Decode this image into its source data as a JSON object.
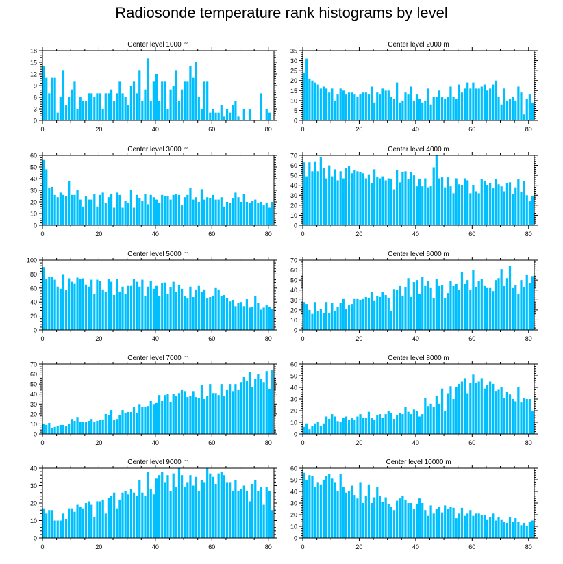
{
  "title": "Radiosonde temperature rank histograms by level",
  "bar_color": "#00BFFF",
  "chart_data": [
    {
      "type": "bar",
      "title": "Center level 1000 m",
      "ylim": [
        0,
        18
      ],
      "yticks": [
        0,
        3,
        6,
        9,
        12,
        15,
        18
      ],
      "xlim": [
        0,
        82
      ],
      "xticks": [
        0,
        20,
        40,
        60,
        80
      ],
      "values": [
        14,
        11,
        7,
        11,
        11,
        2,
        6,
        13,
        4,
        6,
        8,
        10,
        3,
        6,
        5,
        5,
        7,
        7,
        6,
        7,
        7,
        3,
        7,
        7,
        8,
        5,
        7,
        10,
        7,
        6,
        4,
        9,
        10,
        7,
        13,
        5,
        8,
        16,
        5,
        10,
        12,
        5,
        10,
        10,
        3,
        8,
        9,
        13,
        5,
        8,
        10,
        10,
        14,
        11,
        15,
        6,
        3,
        10,
        10,
        2,
        3,
        2,
        2,
        4,
        1,
        3,
        2,
        4,
        5,
        1,
        0,
        3,
        0,
        3,
        0,
        0,
        0,
        7,
        0,
        3,
        2,
        0,
        2,
        2,
        0,
        3,
        2
      ]
    },
    {
      "type": "bar",
      "title": "Center level 2000 m",
      "ylim": [
        0,
        35
      ],
      "yticks": [
        0,
        5,
        10,
        15,
        20,
        25,
        30,
        35
      ],
      "xlim": [
        0,
        82
      ],
      "xticks": [
        0,
        20,
        40,
        60,
        80
      ],
      "values": [
        24,
        31,
        21,
        20,
        19,
        18,
        16,
        17,
        16,
        14,
        16,
        10,
        13,
        16,
        15,
        13,
        14,
        14,
        13,
        12,
        13,
        14,
        14,
        13,
        17,
        9,
        14,
        13,
        16,
        15,
        15,
        12,
        11,
        19,
        9,
        10,
        14,
        13,
        17,
        10,
        13,
        11,
        9,
        10,
        16,
        8,
        12,
        12,
        15,
        12,
        11,
        12,
        17,
        12,
        11,
        18,
        14,
        16,
        19,
        16,
        19,
        16,
        16,
        17,
        18,
        15,
        16,
        18,
        20,
        12,
        8,
        16,
        10,
        11,
        12,
        10,
        17,
        14,
        3,
        11,
        13,
        9,
        12,
        10,
        9,
        14,
        7
      ]
    },
    {
      "type": "bar",
      "title": "Center level 3000 m",
      "ylim": [
        0,
        60
      ],
      "yticks": [
        0,
        10,
        20,
        30,
        40,
        50,
        60
      ],
      "xlim": [
        0,
        82
      ],
      "xticks": [
        0,
        20,
        40,
        60,
        80
      ],
      "values": [
        56,
        48,
        32,
        33,
        26,
        24,
        28,
        26,
        25,
        38,
        26,
        26,
        30,
        22,
        16,
        25,
        22,
        22,
        27,
        16,
        26,
        28,
        19,
        24,
        27,
        15,
        28,
        26,
        15,
        21,
        19,
        30,
        15,
        26,
        23,
        21,
        27,
        18,
        26,
        24,
        22,
        19,
        26,
        25,
        25,
        22,
        26,
        27,
        26,
        17,
        24,
        26,
        32,
        22,
        24,
        20,
        31,
        22,
        24,
        23,
        26,
        22,
        22,
        24,
        16,
        20,
        19,
        23,
        28,
        24,
        20,
        27,
        20,
        19,
        21,
        22,
        19,
        20,
        17,
        19,
        15,
        20,
        27,
        25,
        26,
        31,
        28
      ]
    },
    {
      "type": "bar",
      "title": "Center level 4000 m",
      "ylim": [
        0,
        70
      ],
      "yticks": [
        0,
        10,
        20,
        30,
        40,
        50,
        60,
        70
      ],
      "xlim": [
        0,
        82
      ],
      "xticks": [
        0,
        20,
        40,
        60,
        80
      ],
      "values": [
        63,
        49,
        63,
        54,
        64,
        54,
        68,
        57,
        47,
        60,
        49,
        56,
        45,
        54,
        47,
        57,
        59,
        52,
        55,
        54,
        53,
        52,
        47,
        51,
        42,
        56,
        48,
        47,
        49,
        45,
        47,
        46,
        36,
        55,
        43,
        53,
        54,
        46,
        53,
        50,
        39,
        46,
        39,
        47,
        38,
        39,
        58,
        70,
        47,
        48,
        38,
        48,
        39,
        32,
        47,
        41,
        40,
        47,
        45,
        32,
        40,
        34,
        32,
        46,
        44,
        40,
        42,
        37,
        46,
        41,
        39,
        34,
        42,
        43,
        31,
        38,
        46,
        33,
        44,
        30,
        24,
        29,
        40,
        29,
        23,
        27,
        21
      ]
    },
    {
      "type": "bar",
      "title": "Center level 5000 m",
      "ylim": [
        0,
        100
      ],
      "yticks": [
        0,
        20,
        40,
        60,
        80,
        100
      ],
      "xlim": [
        0,
        82
      ],
      "xticks": [
        0,
        20,
        40,
        60,
        80
      ],
      "values": [
        90,
        73,
        76,
        76,
        72,
        62,
        59,
        79,
        57,
        74,
        69,
        66,
        75,
        73,
        74,
        65,
        62,
        72,
        51,
        72,
        70,
        58,
        55,
        73,
        69,
        50,
        73,
        55,
        62,
        51,
        63,
        63,
        73,
        69,
        62,
        72,
        48,
        62,
        70,
        59,
        63,
        49,
        67,
        68,
        51,
        61,
        69,
        54,
        64,
        59,
        48,
        45,
        62,
        47,
        58,
        63,
        55,
        58,
        45,
        47,
        49,
        60,
        58,
        49,
        50,
        46,
        41,
        43,
        34,
        39,
        40,
        34,
        44,
        32,
        33,
        49,
        39,
        29,
        32,
        36,
        33,
        30,
        36
      ]
    },
    {
      "type": "bar",
      "title": "Center level 6000 m",
      "ylim": [
        0,
        70
      ],
      "yticks": [
        0,
        10,
        20,
        30,
        40,
        50,
        60,
        70
      ],
      "xlim": [
        0,
        82
      ],
      "xticks": [
        0,
        20,
        40,
        60,
        80
      ],
      "values": [
        28,
        26,
        20,
        16,
        28,
        19,
        21,
        17,
        28,
        17,
        27,
        19,
        23,
        27,
        31,
        21,
        25,
        26,
        31,
        31,
        30,
        31,
        33,
        32,
        38,
        29,
        34,
        33,
        38,
        35,
        32,
        19,
        41,
        40,
        44,
        34,
        43,
        52,
        33,
        48,
        50,
        36,
        53,
        44,
        49,
        42,
        32,
        51,
        44,
        45,
        32,
        37,
        49,
        44,
        46,
        40,
        58,
        46,
        50,
        40,
        60,
        43,
        49,
        51,
        44,
        42,
        42,
        39,
        50,
        52,
        61,
        44,
        52,
        64,
        42,
        45,
        36,
        50,
        43,
        55,
        47,
        54,
        37,
        57,
        47,
        55,
        53
      ]
    },
    {
      "type": "bar",
      "title": "Center level 7000 m",
      "ylim": [
        0,
        70
      ],
      "yticks": [
        0,
        10,
        20,
        30,
        40,
        50,
        60,
        70
      ],
      "xlim": [
        0,
        82
      ],
      "xticks": [
        0,
        20,
        40,
        60,
        80
      ],
      "values": [
        10,
        9,
        11,
        6,
        7,
        8,
        9,
        9,
        8,
        10,
        15,
        13,
        17,
        12,
        12,
        12,
        13,
        15,
        12,
        13,
        14,
        14,
        20,
        19,
        24,
        14,
        15,
        19,
        24,
        21,
        22,
        22,
        27,
        21,
        30,
        27,
        27,
        28,
        33,
        30,
        31,
        39,
        33,
        39,
        40,
        32,
        40,
        38,
        41,
        44,
        43,
        37,
        38,
        43,
        37,
        36,
        49,
        35,
        38,
        50,
        41,
        41,
        39,
        50,
        38,
        44,
        50,
        43,
        50,
        44,
        52,
        57,
        53,
        62,
        47,
        55,
        60,
        55,
        52,
        63,
        45,
        64,
        43,
        63,
        35,
        32,
        30
      ]
    },
    {
      "type": "bar",
      "title": "Center level 8000 m",
      "ylim": [
        0,
        60
      ],
      "yticks": [
        0,
        10,
        20,
        30,
        40,
        50,
        60
      ],
      "xlim": [
        0,
        82
      ],
      "xticks": [
        0,
        20,
        40,
        60,
        80
      ],
      "values": [
        6,
        9,
        4,
        7,
        9,
        10,
        7,
        9,
        15,
        13,
        17,
        15,
        11,
        10,
        14,
        15,
        12,
        14,
        12,
        15,
        17,
        14,
        14,
        19,
        14,
        12,
        16,
        17,
        14,
        17,
        20,
        18,
        13,
        16,
        18,
        17,
        23,
        19,
        17,
        21,
        20,
        15,
        17,
        31,
        24,
        26,
        23,
        33,
        26,
        39,
        20,
        35,
        41,
        30,
        40,
        43,
        45,
        48,
        35,
        44,
        51,
        44,
        45,
        48,
        39,
        42,
        45,
        43,
        37,
        38,
        40,
        31,
        36,
        34,
        30,
        28,
        40,
        27,
        31,
        30,
        30,
        20,
        17,
        11,
        9,
        10,
        9
      ]
    },
    {
      "type": "bar",
      "title": "Center level 9000 m",
      "ylim": [
        0,
        40
      ],
      "yticks": [
        0,
        10,
        20,
        30,
        40
      ],
      "xlim": [
        0,
        82
      ],
      "xticks": [
        0,
        20,
        40,
        60,
        80
      ],
      "values": [
        17,
        14,
        16,
        16,
        10,
        10,
        10,
        14,
        11,
        17,
        17,
        15,
        19,
        18,
        17,
        20,
        21,
        19,
        12,
        21,
        21,
        22,
        14,
        23,
        24,
        26,
        17,
        22,
        26,
        27,
        25,
        28,
        26,
        24,
        33,
        26,
        24,
        38,
        28,
        25,
        34,
        36,
        38,
        32,
        36,
        27,
        37,
        29,
        40,
        36,
        29,
        32,
        36,
        30,
        35,
        27,
        33,
        32,
        40,
        37,
        35,
        31,
        37,
        38,
        36,
        32,
        32,
        27,
        33,
        27,
        28,
        30,
        27,
        21,
        31,
        33,
        27,
        29,
        19,
        29,
        27,
        16,
        20,
        17,
        24,
        13,
        13
      ]
    },
    {
      "type": "bar",
      "title": "Center level 10000 m",
      "ylim": [
        0,
        60
      ],
      "yticks": [
        0,
        10,
        20,
        30,
        40,
        50,
        60
      ],
      "xlim": [
        0,
        82
      ],
      "xticks": [
        0,
        20,
        40,
        60,
        80
      ],
      "values": [
        56,
        50,
        54,
        53,
        44,
        48,
        46,
        50,
        53,
        55,
        51,
        48,
        40,
        55,
        44,
        39,
        40,
        45,
        37,
        34,
        48,
        30,
        36,
        46,
        30,
        35,
        44,
        36,
        31,
        35,
        29,
        27,
        24,
        32,
        34,
        36,
        33,
        30,
        30,
        25,
        29,
        34,
        30,
        24,
        19,
        28,
        21,
        25,
        27,
        22,
        28,
        25,
        27,
        26,
        17,
        21,
        26,
        19,
        21,
        24,
        19,
        21,
        21,
        20,
        20,
        16,
        18,
        21,
        15,
        18,
        16,
        14,
        13,
        18,
        14,
        17,
        14,
        11,
        13,
        10,
        14,
        15,
        13,
        9,
        18,
        10,
        9
      ]
    }
  ]
}
